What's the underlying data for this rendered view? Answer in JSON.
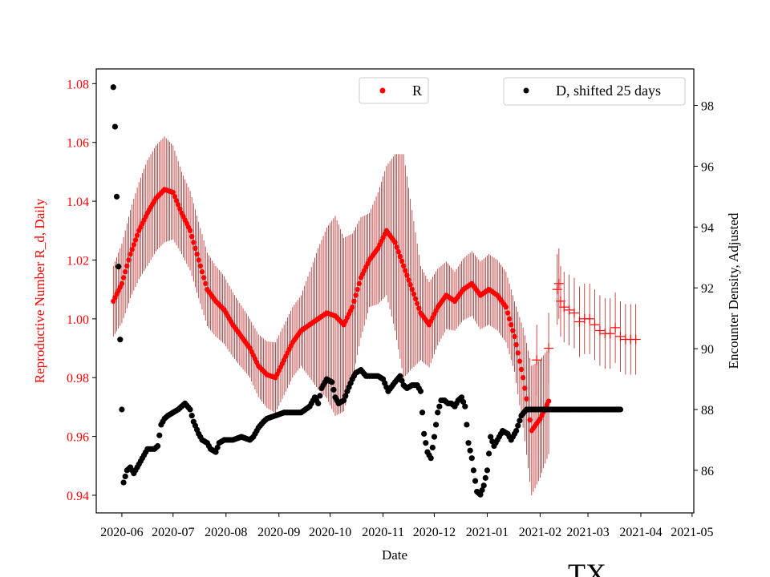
{
  "chart_data": {
    "type": "scatter",
    "title": "TX",
    "xlabel": "Date",
    "ylabel_left": "Reproductive Number R_d, Daily",
    "ylabel_right": "Encounter Density, Adjusted",
    "x_ticks": [
      "2020-06",
      "2020-07",
      "2020-08",
      "2020-09",
      "2020-10",
      "2020-11",
      "2020-12",
      "2021-01",
      "2021-02",
      "2021-03",
      "2021-04",
      "2021-05"
    ],
    "x_range": [
      "2020-05-17",
      "2021-05-02"
    ],
    "ylim_left": [
      0.934,
      1.085
    ],
    "yticks_left": [
      "0.94",
      "0.96",
      "0.98",
      "1.00",
      "1.02",
      "1.04",
      "1.06",
      "1.08"
    ],
    "ylim_right": [
      84.6,
      99.2
    ],
    "yticks_right": [
      "86",
      "88",
      "90",
      "92",
      "94",
      "96",
      "98"
    ],
    "colors": {
      "r_series": "#ff0000",
      "r_errorbar": "#b22222",
      "d_series": "#000000",
      "left_axis": "#ff0000"
    },
    "legend_r": {
      "label": "R",
      "placement": "top-center"
    },
    "legend_d": {
      "label": "D, shifted 25 days",
      "placement": "top-right"
    },
    "r_series": {
      "name": "R",
      "start_date": "2020-05-27",
      "points": [
        [
          0,
          1.006
        ],
        [
          5,
          1.012
        ],
        [
          10,
          1.022
        ],
        [
          15,
          1.03
        ],
        [
          20,
          1.036
        ],
        [
          25,
          1.041
        ],
        [
          30,
          1.044
        ],
        [
          35,
          1.043
        ],
        [
          40,
          1.036
        ],
        [
          45,
          1.03
        ],
        [
          50,
          1.02
        ],
        [
          55,
          1.01
        ],
        [
          60,
          1.006
        ],
        [
          65,
          1.003
        ],
        [
          70,
          0.998
        ],
        [
          75,
          0.994
        ],
        [
          80,
          0.99
        ],
        [
          85,
          0.984
        ],
        [
          90,
          0.981
        ],
        [
          95,
          0.98
        ],
        [
          100,
          0.986
        ],
        [
          105,
          0.992
        ],
        [
          110,
          0.996
        ],
        [
          115,
          0.998
        ],
        [
          120,
          1.0
        ],
        [
          125,
          1.002
        ],
        [
          130,
          1.001
        ],
        [
          135,
          0.998
        ],
        [
          140,
          1.004
        ],
        [
          145,
          1.014
        ],
        [
          150,
          1.02
        ],
        [
          155,
          1.024
        ],
        [
          160,
          1.03
        ],
        [
          165,
          1.026
        ],
        [
          170,
          1.018
        ],
        [
          175,
          1.01
        ],
        [
          180,
          1.002
        ],
        [
          185,
          0.998
        ],
        [
          190,
          1.004
        ],
        [
          195,
          1.008
        ],
        [
          200,
          1.006
        ],
        [
          205,
          1.01
        ],
        [
          210,
          1.012
        ],
        [
          215,
          1.008
        ],
        [
          220,
          1.01
        ],
        [
          225,
          1.008
        ],
        [
          230,
          1.004
        ],
        [
          235,
          0.994
        ],
        [
          240,
          0.98
        ],
        [
          245,
          0.962
        ],
        [
          250,
          0.966
        ],
        [
          255,
          0.972
        ]
      ],
      "errorbar_half_width": [
        [
          0,
          0.012
        ],
        [
          20,
          0.018
        ],
        [
          30,
          0.018
        ],
        [
          40,
          0.014
        ],
        [
          60,
          0.012
        ],
        [
          80,
          0.01
        ],
        [
          95,
          0.012
        ],
        [
          110,
          0.012
        ],
        [
          120,
          0.024
        ],
        [
          130,
          0.034
        ],
        [
          150,
          0.016
        ],
        [
          160,
          0.022
        ],
        [
          170,
          0.038
        ],
        [
          180,
          0.016
        ],
        [
          200,
          0.01
        ],
        [
          220,
          0.012
        ],
        [
          235,
          0.012
        ],
        [
          245,
          0.022
        ],
        [
          255,
          0.018
        ]
      ]
    },
    "r_sparse_crosses": {
      "points": [
        [
          248,
          0.986
        ],
        [
          255,
          0.99
        ],
        [
          260,
          1.01
        ],
        [
          261,
          1.012
        ],
        [
          262,
          1.006
        ],
        [
          264,
          1.004
        ],
        [
          267,
          1.003
        ],
        [
          270,
          1.002
        ],
        [
          273,
          0.999
        ],
        [
          276,
          1.0
        ],
        [
          279,
          1.0
        ],
        [
          282,
          0.998
        ],
        [
          285,
          0.996
        ],
        [
          288,
          0.995
        ],
        [
          291,
          0.995
        ],
        [
          294,
          0.997
        ],
        [
          297,
          0.994
        ],
        [
          300,
          0.993
        ],
        [
          303,
          0.993
        ],
        [
          306,
          0.993
        ]
      ],
      "errorbar_half_width": 0.012
    },
    "d_series": {
      "name": "D, shifted 25 days",
      "start_date": "2020-05-27",
      "points": [
        [
          0,
          98.6
        ],
        [
          1,
          97.3
        ],
        [
          2,
          95.0
        ],
        [
          3,
          92.7
        ],
        [
          4,
          90.3
        ],
        [
          5,
          88.0
        ],
        [
          6,
          85.6
        ],
        [
          7,
          85.8
        ],
        [
          8,
          86.0
        ],
        [
          10,
          86.1
        ],
        [
          12,
          85.9
        ],
        [
          14,
          86.1
        ],
        [
          16,
          86.3
        ],
        [
          18,
          86.5
        ],
        [
          20,
          86.7
        ],
        [
          22,
          86.7
        ],
        [
          24,
          86.7
        ],
        [
          26,
          86.8
        ],
        [
          28,
          87.5
        ],
        [
          30,
          87.7
        ],
        [
          32,
          87.8
        ],
        [
          35,
          87.9
        ],
        [
          38,
          88.0
        ],
        [
          42,
          88.2
        ],
        [
          45,
          88.0
        ],
        [
          47,
          87.6
        ],
        [
          50,
          87.2
        ],
        [
          52,
          87.0
        ],
        [
          55,
          86.9
        ],
        [
          57,
          86.7
        ],
        [
          60,
          86.6
        ],
        [
          62,
          86.9
        ],
        [
          65,
          87.0
        ],
        [
          70,
          87.0
        ],
        [
          75,
          87.1
        ],
        [
          80,
          87.0
        ],
        [
          82,
          87.1
        ],
        [
          85,
          87.4
        ],
        [
          88,
          87.6
        ],
        [
          90,
          87.7
        ],
        [
          95,
          87.8
        ],
        [
          100,
          87.9
        ],
        [
          105,
          87.9
        ],
        [
          110,
          87.9
        ],
        [
          115,
          88.1
        ],
        [
          118,
          88.4
        ],
        [
          120,
          88.2
        ],
        [
          122,
          88.7
        ],
        [
          125,
          89.0
        ],
        [
          128,
          88.9
        ],
        [
          130,
          88.4
        ],
        [
          132,
          88.2
        ],
        [
          135,
          88.3
        ],
        [
          137,
          88.6
        ],
        [
          140,
          89.0
        ],
        [
          142,
          89.2
        ],
        [
          145,
          89.3
        ],
        [
          148,
          89.1
        ],
        [
          152,
          89.1
        ],
        [
          155,
          89.1
        ],
        [
          158,
          89.0
        ],
        [
          161,
          88.6
        ],
        [
          165,
          88.9
        ],
        [
          168,
          89.1
        ],
        [
          170,
          88.8
        ],
        [
          172,
          88.7
        ],
        [
          175,
          88.8
        ],
        [
          178,
          88.8
        ],
        [
          180,
          88.6
        ],
        [
          182,
          87.2
        ],
        [
          184,
          86.6
        ],
        [
          186,
          86.4
        ],
        [
          188,
          87.1
        ],
        [
          190,
          87.9
        ],
        [
          192,
          88.3
        ],
        [
          194,
          88.3
        ],
        [
          196,
          88.2
        ],
        [
          198,
          88.2
        ],
        [
          200,
          88.1
        ],
        [
          202,
          88.3
        ],
        [
          204,
          88.4
        ],
        [
          206,
          88.1
        ],
        [
          208,
          86.9
        ],
        [
          210,
          86.4
        ],
        [
          211,
          86.0
        ],
        [
          213,
          85.3
        ],
        [
          215,
          85.2
        ],
        [
          217,
          85.5
        ],
        [
          219,
          86.0
        ],
        [
          221,
          87.1
        ],
        [
          223,
          86.8
        ],
        [
          225,
          87.0
        ],
        [
          228,
          87.3
        ],
        [
          231,
          87.2
        ],
        [
          233,
          87.0
        ],
        [
          236,
          87.3
        ],
        [
          239,
          87.8
        ],
        [
          242,
          88.0
        ],
        [
          250,
          88.0
        ],
        [
          260,
          88.0
        ],
        [
          270,
          88.0
        ],
        [
          280,
          88.0
        ],
        [
          290,
          88.0
        ],
        [
          297,
          88.0
        ]
      ]
    }
  }
}
